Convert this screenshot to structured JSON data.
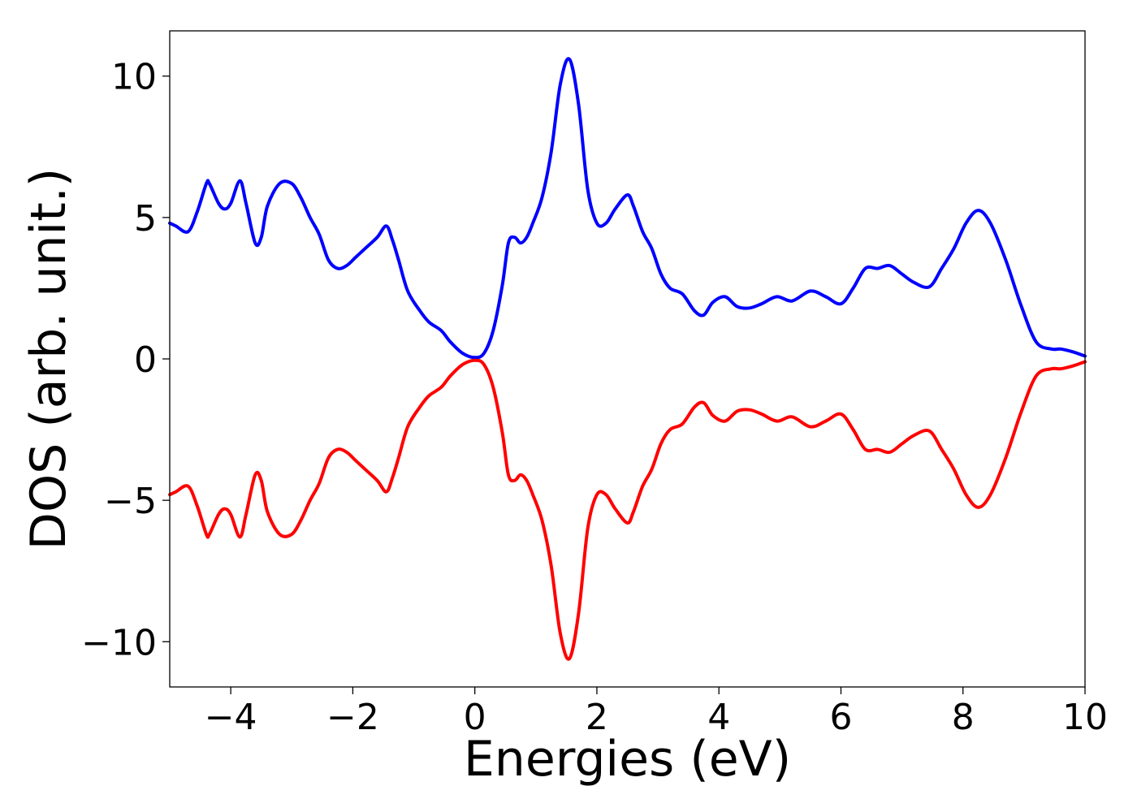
{
  "chart_data": {
    "type": "line",
    "title": "",
    "xlabel": "Energies (eV)",
    "ylabel": "DOS (arb. unit.)",
    "xlim": [
      -5,
      10
    ],
    "ylim": [
      -11.6,
      11.6
    ],
    "xticks": [
      -4,
      -2,
      0,
      2,
      4,
      6,
      8,
      10
    ],
    "xtick_labels": [
      "−4",
      "−2",
      "0",
      "2",
      "4",
      "6",
      "8",
      "10"
    ],
    "yticks": [
      10,
      5,
      0,
      -5,
      -10
    ],
    "ytick_labels": [
      "10",
      "5",
      "0",
      "−5",
      "−10"
    ],
    "grid": false,
    "legend": "none",
    "series": [
      {
        "color": "#0000ff",
        "x": [
          -5.0,
          -4.9,
          -4.7,
          -4.55,
          -4.4,
          -4.35,
          -4.2,
          -4.1,
          -4.0,
          -3.85,
          -3.75,
          -3.6,
          -3.5,
          -3.4,
          -3.2,
          -3.0,
          -2.85,
          -2.7,
          -2.55,
          -2.4,
          -2.25,
          -2.1,
          -1.95,
          -1.8,
          -1.6,
          -1.45,
          -1.35,
          -1.25,
          -1.1,
          -0.9,
          -0.75,
          -0.55,
          -0.4,
          -0.2,
          0.0,
          0.15,
          0.3,
          0.45,
          0.55,
          0.65,
          0.75,
          0.85,
          0.95,
          1.1,
          1.25,
          1.4,
          1.55,
          1.7,
          1.85,
          2.0,
          2.15,
          2.3,
          2.5,
          2.6,
          2.75,
          2.9,
          3.05,
          3.2,
          3.4,
          3.6,
          3.75,
          3.9,
          4.1,
          4.3,
          4.5,
          4.7,
          4.95,
          5.2,
          5.5,
          5.75,
          6.0,
          6.2,
          6.4,
          6.6,
          6.8,
          7.0,
          7.2,
          7.45,
          7.65,
          7.85,
          8.05,
          8.25,
          8.45,
          8.7,
          8.95,
          9.2,
          9.45,
          9.6,
          9.8,
          10.0
        ],
        "y": [
          4.8,
          4.7,
          4.5,
          5.2,
          6.2,
          6.2,
          5.5,
          5.3,
          5.5,
          6.3,
          5.5,
          4.1,
          4.3,
          5.4,
          6.2,
          6.2,
          5.7,
          5.0,
          4.4,
          3.5,
          3.2,
          3.3,
          3.6,
          3.9,
          4.3,
          4.7,
          4.2,
          3.5,
          2.4,
          1.7,
          1.3,
          1.0,
          0.6,
          0.2,
          0.05,
          0.2,
          1.0,
          2.6,
          4.1,
          4.3,
          4.1,
          4.3,
          4.8,
          5.7,
          7.3,
          9.7,
          10.6,
          9.0,
          6.0,
          4.8,
          4.8,
          5.3,
          5.8,
          5.4,
          4.5,
          3.9,
          3.0,
          2.5,
          2.3,
          1.7,
          1.55,
          2.0,
          2.2,
          1.85,
          1.8,
          1.95,
          2.2,
          2.05,
          2.4,
          2.2,
          1.95,
          2.5,
          3.2,
          3.2,
          3.3,
          3.0,
          2.7,
          2.55,
          3.2,
          3.9,
          4.8,
          5.25,
          4.8,
          3.5,
          1.9,
          0.6,
          0.35,
          0.35,
          0.25,
          0.1
        ]
      },
      {
        "color": "#ff0000",
        "x": [
          -5.0,
          -4.9,
          -4.7,
          -4.55,
          -4.4,
          -4.35,
          -4.2,
          -4.1,
          -4.0,
          -3.85,
          -3.75,
          -3.6,
          -3.5,
          -3.4,
          -3.2,
          -3.0,
          -2.85,
          -2.7,
          -2.55,
          -2.4,
          -2.25,
          -2.1,
          -1.95,
          -1.8,
          -1.6,
          -1.45,
          -1.35,
          -1.25,
          -1.1,
          -0.9,
          -0.75,
          -0.55,
          -0.4,
          -0.2,
          0.0,
          0.15,
          0.3,
          0.45,
          0.55,
          0.65,
          0.75,
          0.85,
          0.95,
          1.1,
          1.25,
          1.4,
          1.55,
          1.7,
          1.85,
          2.0,
          2.15,
          2.3,
          2.5,
          2.6,
          2.75,
          2.9,
          3.05,
          3.2,
          3.4,
          3.6,
          3.75,
          3.9,
          4.1,
          4.3,
          4.5,
          4.7,
          4.95,
          5.2,
          5.5,
          5.75,
          6.0,
          6.2,
          6.4,
          6.6,
          6.8,
          7.0,
          7.2,
          7.45,
          7.65,
          7.85,
          8.05,
          8.25,
          8.45,
          8.7,
          8.95,
          9.2,
          9.45,
          9.6,
          9.8,
          10.0
        ],
        "y": [
          -4.8,
          -4.7,
          -4.5,
          -5.2,
          -6.2,
          -6.2,
          -5.5,
          -5.3,
          -5.5,
          -6.3,
          -5.5,
          -4.1,
          -4.3,
          -5.4,
          -6.2,
          -6.2,
          -5.7,
          -5.0,
          -4.4,
          -3.5,
          -3.2,
          -3.3,
          -3.6,
          -3.9,
          -4.3,
          -4.7,
          -4.2,
          -3.5,
          -2.4,
          -1.7,
          -1.3,
          -1.0,
          -0.6,
          -0.2,
          -0.05,
          -0.2,
          -1.0,
          -2.6,
          -4.1,
          -4.3,
          -4.1,
          -4.3,
          -4.8,
          -5.7,
          -7.3,
          -9.7,
          -10.6,
          -9.0,
          -6.0,
          -4.8,
          -4.8,
          -5.3,
          -5.8,
          -5.4,
          -4.5,
          -3.9,
          -3.0,
          -2.5,
          -2.3,
          -1.7,
          -1.55,
          -2.0,
          -2.2,
          -1.85,
          -1.8,
          -1.95,
          -2.2,
          -2.05,
          -2.4,
          -2.2,
          -1.95,
          -2.5,
          -3.2,
          -3.2,
          -3.3,
          -3.0,
          -2.7,
          -2.55,
          -3.2,
          -3.9,
          -4.8,
          -5.25,
          -4.8,
          -3.5,
          -1.9,
          -0.6,
          -0.35,
          -0.35,
          -0.25,
          -0.1
        ]
      }
    ]
  }
}
